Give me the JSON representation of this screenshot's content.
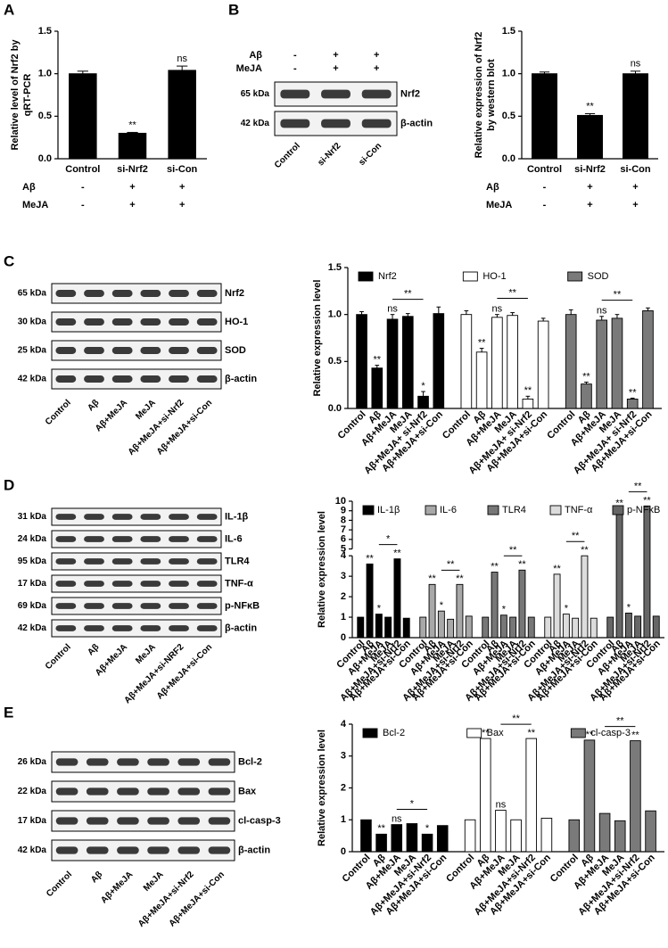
{
  "panel_labels": [
    "A",
    "B",
    "C",
    "D",
    "E"
  ],
  "blots": [
    {
      "header": [
        {
          "label": "Aβ",
          "values": [
            "-",
            "+",
            "+"
          ]
        },
        {
          "label": "MeJA",
          "values": [
            "-",
            "+",
            "+"
          ]
        }
      ],
      "rows": [
        {
          "kda": "65 kDa",
          "name": "Nrf2"
        },
        {
          "kda": "42 kDa",
          "name": "β-actin"
        }
      ],
      "lanes": [
        "Control",
        "si-Nrf2",
        "si-Con"
      ]
    },
    {
      "rows": [
        {
          "kda": "65 kDa",
          "name": "Nrf2"
        },
        {
          "kda": "30 kDa",
          "name": "HO-1"
        },
        {
          "kda": "25 kDa",
          "name": "SOD"
        },
        {
          "kda": "42 kDa",
          "name": "β-actin"
        }
      ],
      "lanes": [
        "Control",
        "Aβ",
        "Aβ+MeJA",
        "MeJA",
        "Aβ+MeJA+si-Nrf2",
        "Aβ+MeJA+si-Con"
      ]
    },
    {
      "rows": [
        {
          "kda": "31 kDa",
          "name": "IL-1β"
        },
        {
          "kda": "24 kDa",
          "name": "IL-6"
        },
        {
          "kda": "95 kDa",
          "name": "TLR4"
        },
        {
          "kda": "17 kDa",
          "name": "TNF-α"
        },
        {
          "kda": "69 kDa",
          "name": "p-NFκB"
        },
        {
          "kda": "42 kDa",
          "name": "β-actin"
        }
      ],
      "lanes": [
        "Control",
        "Aβ",
        "Aβ+MeJA",
        "MeJA",
        "Aβ+MeJA+si-NRF2",
        "Aβ+MeJA+si-Con"
      ]
    },
    {
      "rows": [
        {
          "kda": "26 kDa",
          "name": "Bcl-2"
        },
        {
          "kda": "22 kDa",
          "name": "Bax"
        },
        {
          "kda": "17 kDa",
          "name": "cl-casp-3"
        },
        {
          "kda": "42 kDa",
          "name": "β-actin"
        }
      ],
      "lanes": [
        "Control",
        "Aβ",
        "Aβ+MeJA",
        "MeJA",
        "Aβ+MeJA+si-Nrf2",
        "Aβ+MeJA+si-Con"
      ]
    }
  ],
  "chart_data": [
    {
      "type": "bar",
      "ylabel": [
        "Relative level of Nrf2 by",
        "qRT-PCR"
      ],
      "categories": [
        "Control",
        "si-Nrf2",
        "si-Con"
      ],
      "values": [
        1.0,
        0.3,
        1.04
      ],
      "errors": [
        0.03,
        0.01,
        0.05
      ],
      "annotations": [
        null,
        "**",
        "ns"
      ],
      "color": "#000000",
      "ylim": [
        0,
        1.5
      ],
      "yticks": [
        {
          "value": 0,
          "label": "0.0"
        },
        {
          "value": 0.5,
          "label": "0.5"
        },
        {
          "value": 1.0,
          "label": "1.0"
        },
        {
          "value": 1.5,
          "label": "1.5"
        }
      ],
      "conditions": [
        {
          "label": "Aβ",
          "values": [
            "-",
            "+",
            "+"
          ]
        },
        {
          "label": "MeJA",
          "values": [
            "-",
            "+",
            "+"
          ]
        }
      ]
    },
    {
      "type": "bar",
      "ylabel": [
        "Relative expression of Nrf2",
        "by western blot"
      ],
      "categories": [
        "Control",
        "si-Nrf2",
        "si-Con"
      ],
      "values": [
        1.0,
        0.51,
        1.0
      ],
      "errors": [
        0.02,
        0.02,
        0.03
      ],
      "annotations": [
        null,
        "**",
        "ns"
      ],
      "color": "#000000",
      "ylim": [
        0,
        1.5
      ],
      "yticks": [
        {
          "value": 0,
          "label": "0.0"
        },
        {
          "value": 0.5,
          "label": "0.5"
        },
        {
          "value": 1.0,
          "label": "1.0"
        },
        {
          "value": 1.5,
          "label": "1.5"
        }
      ],
      "conditions": [
        {
          "label": "Aβ",
          "values": [
            "-",
            "+",
            "+"
          ]
        },
        {
          "label": "MeJA",
          "values": [
            "-",
            "+",
            "+"
          ]
        }
      ]
    },
    {
      "type": "bar",
      "ylabel": "Relative expression level",
      "categories": [
        "Control",
        "Aβ",
        "Aβ+MeJA",
        "MeJA",
        "Aβ+MeJA+ si-Nrf2",
        "Aβ+MeJA+si-Con"
      ],
      "series": [
        {
          "name": "Nrf2",
          "color": "#000000",
          "values": [
            1.0,
            0.43,
            0.95,
            0.98,
            0.13,
            1.01
          ],
          "errors": [
            0.03,
            0.03,
            0.05,
            0.03,
            0.05,
            0.07
          ],
          "annotations": [
            null,
            "**",
            "ns",
            null,
            "*",
            null
          ],
          "bracket": {
            "from": 2,
            "to": 4,
            "label": "**"
          }
        },
        {
          "name": "HO-1",
          "color": "#ffffff",
          "values": [
            1.0,
            0.6,
            0.97,
            0.99,
            0.1,
            0.93
          ],
          "errors": [
            0.04,
            0.04,
            0.03,
            0.03,
            0.03,
            0.03
          ],
          "annotations": [
            null,
            "**",
            "ns",
            null,
            "**",
            null
          ],
          "bracket": {
            "from": 2,
            "to": 4,
            "label": "**"
          }
        },
        {
          "name": "SOD",
          "color": "#7a7a7a",
          "values": [
            1.0,
            0.26,
            0.94,
            0.96,
            0.1,
            1.04
          ],
          "errors": [
            0.05,
            0.02,
            0.04,
            0.04,
            0.01,
            0.03
          ],
          "annotations": [
            null,
            "**",
            "ns",
            null,
            "**",
            null
          ],
          "bracket": {
            "from": 2,
            "to": 4,
            "label": "**"
          }
        }
      ],
      "ylim": [
        0,
        1.5
      ],
      "yticks": [
        {
          "value": 0,
          "label": "0.0"
        },
        {
          "value": 0.5,
          "label": "0.5"
        },
        {
          "value": 1.0,
          "label": "1.0"
        },
        {
          "value": 1.5,
          "label": "1.5"
        }
      ]
    },
    {
      "type": "bar",
      "ylabel": "Relative expression level",
      "categories": [
        "Control",
        "Aβ",
        "Aβ+MeJA",
        "MeJA",
        "Aβ+MeJA+si-Nrf2",
        "Aβ+MeJA+si-Con"
      ],
      "series": [
        {
          "name": "IL-1β",
          "color": "#000000",
          "values": [
            1.0,
            3.6,
            1.15,
            1.0,
            3.85,
            0.95
          ],
          "annotations": [
            null,
            "**",
            "*",
            null,
            "**",
            null
          ],
          "bracket": {
            "from": 2,
            "to": 4,
            "label": "*"
          }
        },
        {
          "name": "IL-6",
          "color": "#a8a8a8",
          "values": [
            1.0,
            2.6,
            1.3,
            0.9,
            2.6,
            1.05
          ],
          "annotations": [
            null,
            "**",
            "*",
            null,
            "**",
            null
          ],
          "bracket": {
            "from": 2,
            "to": 4,
            "label": "**"
          }
        },
        {
          "name": "TLR4",
          "color": "#777777",
          "values": [
            1.0,
            3.2,
            1.1,
            1.0,
            3.3,
            1.0
          ],
          "annotations": [
            null,
            "**",
            "*",
            null,
            "**",
            null
          ],
          "bracket": {
            "from": 2,
            "to": 4,
            "label": "**"
          }
        },
        {
          "name": "TNF-α",
          "color": "#dcdcdc",
          "values": [
            1.0,
            3.1,
            1.15,
            0.95,
            4.0,
            0.95
          ],
          "annotations": [
            null,
            "**",
            "*",
            null,
            "**",
            null
          ],
          "bracket": {
            "from": 2,
            "to": 4,
            "label": "**"
          }
        },
        {
          "name": "p-NFκB",
          "color": "#666666",
          "values": [
            1.0,
            9.2,
            1.2,
            1.05,
            9.5,
            1.05
          ],
          "annotations": [
            null,
            "**",
            "*",
            null,
            "**",
            null
          ],
          "bracket": {
            "from": 2,
            "to": 4,
            "label": "**"
          }
        }
      ],
      "ylim": [
        0,
        10
      ],
      "ybreak": [
        4,
        5
      ],
      "yticks": [
        0,
        1,
        2,
        3,
        4,
        5,
        6,
        7,
        8,
        9,
        10
      ]
    },
    {
      "type": "bar",
      "ylabel": "Relative expression level",
      "categories": [
        "Control",
        "Aβ",
        "Aβ+MeJA",
        "MeJA",
        "Aβ+MeJA+si-Nrf2",
        "Aβ+MeJA+si-Con"
      ],
      "series": [
        {
          "name": "Bcl-2",
          "color": "#000000",
          "values": [
            1.0,
            0.55,
            0.85,
            0.88,
            0.55,
            0.82
          ],
          "annotations": [
            null,
            "**",
            "ns",
            null,
            "*",
            null
          ],
          "bracket": {
            "from": 2,
            "to": 4,
            "label": "*"
          }
        },
        {
          "name": "Bax",
          "color": "#ffffff",
          "values": [
            1.0,
            3.55,
            1.3,
            1.0,
            3.55,
            1.05
          ],
          "annotations": [
            null,
            "**",
            "ns",
            null,
            "**",
            null
          ],
          "bracket": {
            "from": 2,
            "to": 4,
            "label": "**"
          }
        },
        {
          "name": "cl-casp-3",
          "color": "#7a7a7a",
          "values": [
            1.0,
            3.5,
            1.2,
            0.97,
            3.48,
            1.28
          ],
          "annotations": [
            null,
            "**",
            null,
            null,
            "**",
            null
          ],
          "bracket": {
            "from": 2,
            "to": 4,
            "label": "**"
          }
        }
      ],
      "ylim": [
        0,
        4
      ],
      "yticks": [
        0,
        1,
        2,
        3,
        4
      ]
    }
  ]
}
